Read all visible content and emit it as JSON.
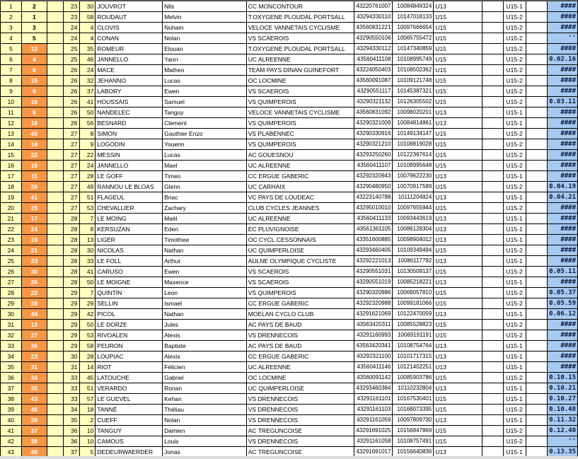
{
  "colors": {
    "rank_bg": "#ffffc0",
    "highlight_bg": "#f79646",
    "time_bg": "#a6caf0"
  },
  "rows": [
    [
      "1",
      "2",
      "",
      "23",
      "30",
      "JOUVROT",
      "Nils",
      "CC MONCONTOUR",
      "43220761007",
      "10084849324",
      "U13",
      "",
      "U15-1",
      "",
      "####"
    ],
    [
      "2",
      "1",
      "",
      "23",
      "58",
      "ROUDAUT",
      "Melvin",
      "T.OXYGENE PLOUDAL PORTSALL",
      "43294330110",
      "10147018133",
      "U15",
      "",
      "U15-2",
      "",
      "####"
    ],
    [
      "3",
      "3",
      "",
      "24",
      "4",
      "CLOVIS",
      "Noham",
      "VELOCE VANNETAIS CYCLISME",
      "43560831221",
      "10097666654",
      "U15",
      "",
      "U15-2",
      "",
      "####"
    ],
    [
      "4",
      "5",
      "",
      "24",
      "4",
      "CONAN",
      "Nolan",
      "VS SCAEROIS",
      "43290550106",
      "10065755472",
      "U15",
      "",
      "U15-2",
      "",
      "''"
    ],
    [
      "5",
      "12",
      "",
      "25",
      "35",
      "ROMEUR",
      "Elouan",
      "T.OXYGENE PLOUDAL PORTSALL",
      "43294330112",
      "10147340859",
      "U15",
      "",
      "U15-2",
      "",
      "####"
    ],
    [
      "6",
      "4",
      "",
      "25",
      "46",
      "JANNELLO",
      "Yann",
      "UC ALREENNE",
      "43560411108",
      "10108995749",
      "U15",
      "",
      "U15-2",
      "",
      "0.02.16"
    ],
    [
      "7",
      "6",
      "",
      "26",
      "24",
      "MACE",
      "Matheo",
      "TEAM PAYS DINAN GUINEFORT",
      "43224050403",
      "10108502362",
      "U15",
      "",
      "U15-2",
      "",
      "####"
    ],
    [
      "8",
      "15",
      "",
      "26",
      "32",
      "JEHANNO",
      "Lucas",
      "OC LOCMINE",
      "43560091087",
      "10109121748",
      "U15",
      "",
      "U15-2",
      "",
      "####"
    ],
    [
      "9",
      "9",
      "",
      "26",
      "37",
      "LABORY",
      "Ewen",
      "VS SCAEROIS",
      "43290551117",
      "10145387321",
      "U15",
      "",
      "U15-2",
      "",
      "####"
    ],
    [
      "10",
      "16",
      "",
      "26",
      "41",
      "HOUSSAIS",
      "Samuel",
      "VS QUIMPEROIS",
      "43290321132",
      "10126305502",
      "U15",
      "",
      "U15-2",
      "",
      "0.03.11"
    ],
    [
      "11",
      "8",
      "",
      "26",
      "50",
      "NANDELEC",
      "Tanguy",
      "VELOCE VANNETAIS CYCLISME",
      "43560831092",
      "10098020201",
      "U13",
      "",
      "U15-1",
      "",
      "####"
    ],
    [
      "12",
      "18",
      "",
      "26",
      "56",
      "BESNARD",
      "Clement",
      "VS QUIMPEROIS",
      "43290321009",
      "10084814861",
      "U13",
      "",
      "U15-1",
      "",
      "####"
    ],
    [
      "13",
      "45",
      "",
      "27",
      "8",
      "SIMON",
      "Gauthier Enzo",
      "VS PLABENNEC",
      "43290330916",
      "10149134147",
      "U15",
      "",
      "U15-2",
      "",
      "####"
    ],
    [
      "14",
      "14",
      "",
      "27",
      "9",
      "LOGODIN",
      "Youenn",
      "VS QUIMPEROIS",
      "43290321210",
      "10108819028",
      "U15",
      "",
      "U15-2",
      "",
      "####"
    ],
    [
      "15",
      "32",
      "",
      "27",
      "22",
      "MESSIN",
      "Lucas",
      "AC GOUESNOU",
      "43293250260",
      "10122397614",
      "U15",
      "",
      "U15-2",
      "",
      "####"
    ],
    [
      "16",
      "10",
      "",
      "27",
      "24",
      "JANNELLO",
      "Mael",
      "UC ALREENNE",
      "43560411107",
      "10108995648",
      "U15",
      "",
      "U15-2",
      "",
      "####"
    ],
    [
      "17",
      "11",
      "",
      "27",
      "28",
      "LE GOFF",
      "Timeo",
      "CC ERGUE GABERIC",
      "43292320943",
      "10079622230",
      "U13",
      "",
      "U15-1",
      "",
      "####"
    ],
    [
      "18",
      "20",
      "",
      "27",
      "49",
      "RANNOU LE BLOAS",
      "Glenn",
      "UC CARHAIX",
      "43290480950",
      "10070917589",
      "U15",
      "",
      "U15-2",
      "",
      "0.04.19"
    ],
    [
      "19",
      "41",
      "",
      "27",
      "51",
      "FLAGEUL",
      "Briac",
      "VC PAYS DE LOUDEAC",
      "43223140788",
      "10111204824",
      "U13",
      "",
      "U15-1",
      "",
      "0.04.21"
    ],
    [
      "20",
      "25",
      "",
      "27",
      "53",
      "CHEVALLIER",
      "Zachary",
      "CLUB CYCLES JEANNES",
      "43295010010",
      "10097655944",
      "U15",
      "",
      "U15-2",
      "",
      "####"
    ],
    [
      "21",
      "17",
      "",
      "28",
      "7",
      "LE MOING",
      "Maël",
      "UC ALREENNE",
      "43560411133",
      "10093443619",
      "U13",
      "",
      "U15-1",
      "",
      "####"
    ],
    [
      "22",
      "24",
      "",
      "28",
      "8",
      "KERSUZAN",
      "Eden",
      "EC PLUVIGNOISE",
      "43561361105",
      "10086128304",
      "U13",
      "",
      "U15-1",
      "",
      "####"
    ],
    [
      "23",
      "19",
      "",
      "28",
      "13",
      "LIGER",
      "Timothee",
      "OC CYCL.CESSONNAIS",
      "43351600885",
      "10098904012",
      "U13",
      "",
      "U15-1",
      "",
      "####"
    ],
    [
      "24",
      "21",
      "",
      "28",
      "30",
      "NICOLAS",
      "Nathan",
      "UC QUIMPERLOISE",
      "43293460405",
      "10109349494",
      "U15",
      "",
      "U15-2",
      "",
      "####"
    ],
    [
      "25",
      "33",
      "",
      "28",
      "33",
      "LE FOLL",
      "Arthur",
      "AULNE OLYMPIQUE CYCLISTE",
      "43292221013",
      "10086117792",
      "U13",
      "",
      "U15-1",
      "",
      "####"
    ],
    [
      "26",
      "30",
      "",
      "28",
      "41",
      "CARUSO",
      "Ewen",
      "VS SCAEROIS",
      "43290551031",
      "10130509137",
      "U15",
      "",
      "U15-2",
      "",
      "0.05.11"
    ],
    [
      "27",
      "26",
      "",
      "28",
      "50",
      "LE MOIGNE",
      "Maxence",
      "VS SCAEROIS",
      "43290551019",
      "10085218221",
      "U13",
      "",
      "U15-1",
      "",
      "####"
    ],
    [
      "28",
      "22",
      "",
      "29",
      "7",
      "QUINTIN",
      "Leon",
      "VS QUIMPEROIS",
      "43290320986",
      "10068057810",
      "U15",
      "",
      "U15-2",
      "",
      "0.05.37"
    ],
    [
      "29",
      "28",
      "",
      "29",
      "29",
      "SELLIN",
      "Ismael",
      "CC ERGUE GABERIC",
      "43292320988",
      "10099181066",
      "U15",
      "",
      "U15-2",
      "",
      "0.05.59"
    ],
    [
      "30",
      "44",
      "",
      "29",
      "42",
      "PICOL",
      "Nathan",
      "MOELAN CYCLO CLUB",
      "43291621069",
      "10122470059",
      "U13",
      "",
      "U15-1",
      "",
      "0.06.12"
    ],
    [
      "31",
      "13",
      "",
      "29",
      "50",
      "LE DORZE",
      "Jules",
      "AC PAYS DE BAUD",
      "43563420311",
      "10085528823",
      "U15",
      "",
      "U15-2",
      "",
      "####"
    ],
    [
      "32",
      "27",
      "",
      "29",
      "53",
      "RIVOALEN",
      "Alexis",
      "VS DRENNECOIS",
      "43291160993",
      "10069191191",
      "U15",
      "",
      "U15-2",
      "",
      "####"
    ],
    [
      "33",
      "36",
      "",
      "29",
      "58",
      "PEURON",
      "Baptiste",
      "AC PAYS DE BAUD",
      "43563420341",
      "10108754764",
      "U13",
      "",
      "U15-1",
      "",
      "####"
    ],
    [
      "34",
      "23",
      "",
      "30",
      "28",
      "LOUPIAC",
      "Alexis",
      "CC ERGUE GABERIC",
      "43292321100",
      "10101717315",
      "U13",
      "",
      "U15-1",
      "",
      "####"
    ],
    [
      "35",
      "31",
      "",
      "31",
      "14",
      "RIOT",
      "Félicien",
      "UC ALREENNE",
      "43560411146",
      "10121402251",
      "U13",
      "",
      "U15-1",
      "",
      "####"
    ],
    [
      "36",
      "34",
      "",
      "33",
      "45",
      "LATOUCHE",
      "Gabriel",
      "OC LOCMINE",
      "43560091142",
      "10085903786",
      "U15",
      "",
      "U15-2",
      "",
      "0.10.15"
    ],
    [
      "37",
      "35",
      "",
      "33",
      "51",
      "VERARDO",
      "Ronan",
      "UC QUIMPERLOISE",
      "43293460384",
      "10110232804",
      "U13",
      "",
      "U15-1",
      "",
      "0.10.21"
    ],
    [
      "38",
      "43",
      "",
      "33",
      "57",
      "LE GUEVEL",
      "Kehan",
      "VS DRENNECOIS",
      "43291161101",
      "10167530401",
      "U15",
      "",
      "U15-1",
      "",
      "0.10.27"
    ],
    [
      "39",
      "46",
      "",
      "34",
      "18",
      "TANNÉ",
      "Théliau",
      "VS DRENNECOIS",
      "43291161103",
      "10168073395",
      "U15",
      "",
      "U15-2",
      "",
      "0.10.48"
    ],
    [
      "40",
      "39",
      "",
      "35",
      "2",
      "CUEFF",
      "Nolan",
      "VS DRENNECOIS",
      "43291161059",
      "10097809730",
      "U13",
      "",
      "U15-1",
      "",
      "0.11.32"
    ],
    [
      "41",
      "37",
      "",
      "36",
      "10",
      "TANGUY",
      "Damien",
      "AC TREGUNCOISE",
      "43291691025",
      "10156847869",
      "U15",
      "",
      "U15-2",
      "",
      "0.12.40"
    ],
    [
      "42",
      "38",
      "",
      "36",
      "10",
      "CAMOUS",
      "Louis",
      "VS DRENNECOIS",
      "43291161058",
      "10108757491",
      "U15",
      "",
      "U15-2",
      "",
      "''"
    ],
    [
      "43",
      "40",
      "",
      "37",
      "5",
      "DEDEURWAERDER",
      "Jonas",
      "AC TREGUNCOISE",
      "43291691017",
      "10156640836",
      "U13",
      "",
      "U15-1",
      "",
      "0.13.35"
    ]
  ]
}
